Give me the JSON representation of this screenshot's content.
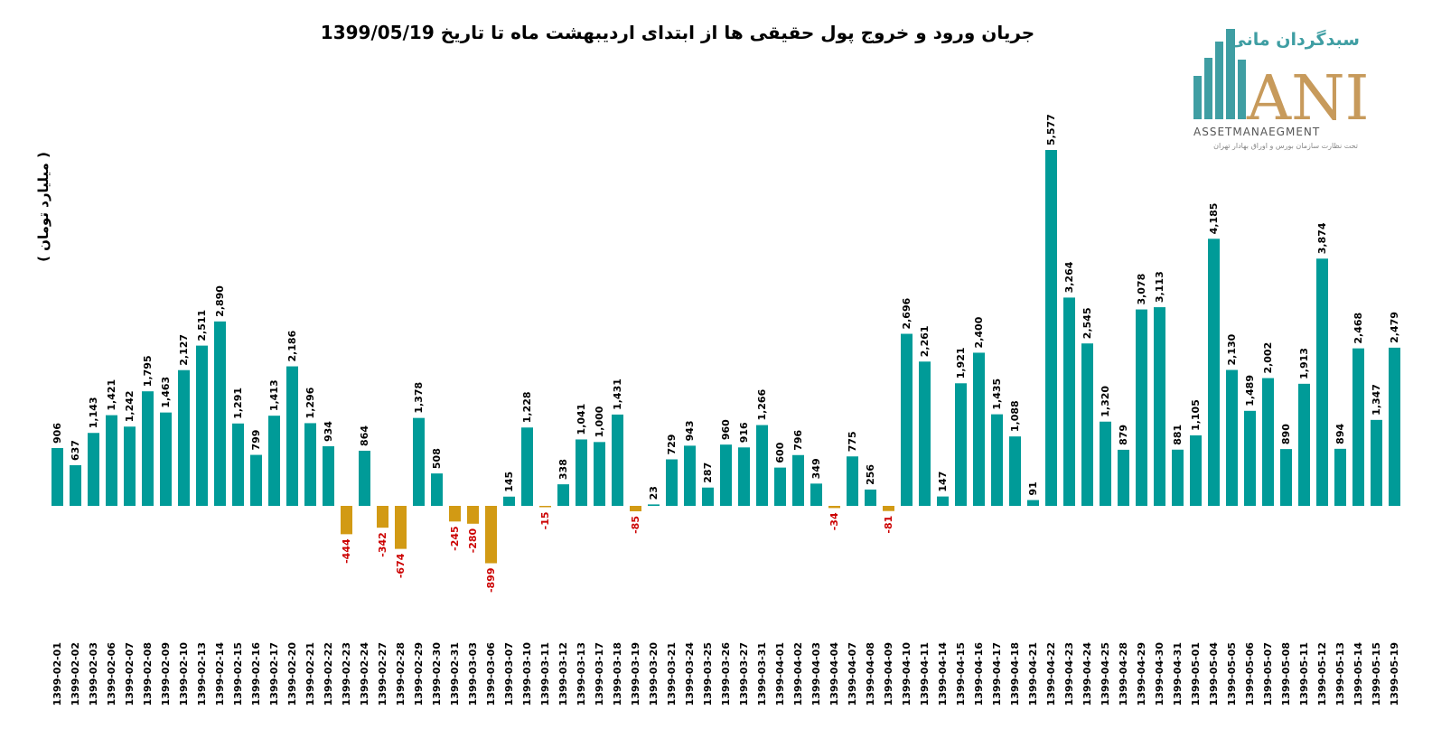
{
  "chart_data": {
    "type": "bar",
    "title": "جریان ورود و خروج پول حقیقی ها از ابتدای اردیبهشت ماه تا تاریخ 1399/05/19",
    "ylabel": "( میلیارد تومان )",
    "xlabel": "",
    "ylim": [
      -1500,
      5700
    ],
    "grid": false,
    "legend": "none",
    "colors": {
      "positive": "#009b98",
      "negative": "#d29a14",
      "negative_label": "#cc0000",
      "positive_label": "#000000"
    },
    "categories": [
      "1399-02-01",
      "1399-02-02",
      "1399-02-03",
      "1399-02-06",
      "1399-02-07",
      "1399-02-08",
      "1399-02-09",
      "1399-02-10",
      "1399-02-13",
      "1399-02-14",
      "1399-02-15",
      "1399-02-16",
      "1399-02-17",
      "1399-02-20",
      "1399-02-21",
      "1399-02-22",
      "1399-02-23",
      "1399-02-24",
      "1399-02-27",
      "1399-02-28",
      "1399-02-29",
      "1399-02-30",
      "1399-02-31",
      "1399-03-03",
      "1399-03-06",
      "1399-03-07",
      "1399-03-10",
      "1399-03-11",
      "1399-03-12",
      "1399-03-13",
      "1399-03-17",
      "1399-03-18",
      "1399-03-19",
      "1399-03-20",
      "1399-03-21",
      "1399-03-24",
      "1399-03-25",
      "1399-03-26",
      "1399-03-27",
      "1399-03-31",
      "1399-04-01",
      "1399-04-02",
      "1399-04-03",
      "1399-04-04",
      "1399-04-07",
      "1399-04-08",
      "1399-04-09",
      "1399-04-10",
      "1399-04-11",
      "1399-04-14",
      "1399-04-15",
      "1399-04-16",
      "1399-04-17",
      "1399-04-18",
      "1399-04-21",
      "1399-04-22",
      "1399-04-23",
      "1399-04-24",
      "1399-04-25",
      "1399-04-28",
      "1399-04-29",
      "1399-04-30",
      "1399-04-31",
      "1399-05-01",
      "1399-05-04",
      "1399-05-05",
      "1399-05-06",
      "1399-05-07",
      "1399-05-08",
      "1399-05-11",
      "1399-05-12",
      "1399-05-13",
      "1399-05-14",
      "1399-05-15",
      "1399-05-19"
    ],
    "values": [
      906,
      637,
      1143,
      1421,
      1242,
      1795,
      1463,
      2127,
      2511,
      2890,
      1291,
      799,
      1413,
      2186,
      1296,
      934,
      -444,
      864,
      -342,
      -674,
      1378,
      508,
      -245,
      -280,
      -899,
      145,
      1228,
      -15,
      338,
      1041,
      1000,
      1431,
      -85,
      23,
      729,
      943,
      287,
      960,
      916,
      1266,
      600,
      796,
      349,
      -34,
      775,
      256,
      -81,
      2696,
      2261,
      147,
      1921,
      2400,
      1435,
      1088,
      91,
      5577,
      3264,
      2545,
      1320,
      879,
      3078,
      3113,
      881,
      1105,
      4185,
      2130,
      1489,
      2002,
      890,
      1913,
      3874,
      894,
      2468,
      1347,
      2479
    ],
    "value_labels": [
      "906",
      "637",
      "1,143",
      "1,421",
      "1,242",
      "1,795",
      "1,463",
      "2,127",
      "2,511",
      "2,890",
      "1,291",
      "799",
      "1,413",
      "2,186",
      "1,296",
      "934",
      "-444",
      "864",
      "-342",
      "-674",
      "1,378",
      "508",
      "-245",
      "-280",
      "-899",
      "145",
      "1,228",
      "-15",
      "338",
      "1,041",
      "1,000",
      "1,431",
      "-85",
      "23",
      "729",
      "943",
      "287",
      "960",
      "916",
      "1,266",
      "600",
      "796",
      "349",
      "-34",
      "775",
      "256",
      "-81",
      "2,696",
      "2,261",
      "147",
      "1,921",
      "2,400",
      "1,435",
      "1,088",
      "91",
      "5,577",
      "3,264",
      "2,545",
      "1,320",
      "879",
      "3,078",
      "3,113",
      "881",
      "1,105",
      "4,185",
      "2,130",
      "1,489",
      "2,002",
      "890",
      "1,913",
      "3,874",
      "894",
      "2,468",
      "1,347",
      "2,479"
    ]
  },
  "logo": {
    "brand_fa": "سبدگردان مانی",
    "brand_en": "ANI",
    "subtitle_en": "ASSETMANAEGMENT",
    "note_fa": "تحت نظارت سازمان بورس و اوراق بهادار تهران",
    "colors": {
      "teal": "#3f9ea3",
      "gold": "#c79a5b",
      "gray": "#666666"
    }
  }
}
